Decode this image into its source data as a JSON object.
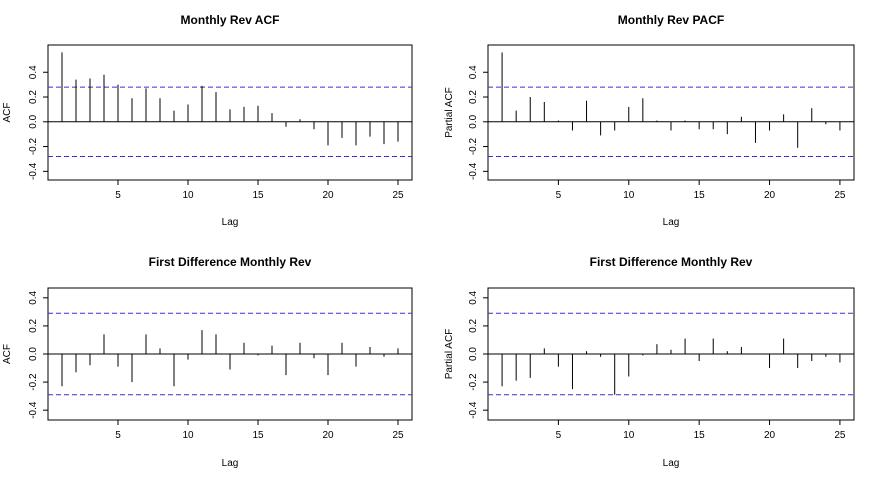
{
  "colors": {
    "bar": "#000000",
    "confidence_band": "#3333cc",
    "frame": "#000000",
    "background": "#ffffff"
  },
  "chart_data": [
    {
      "type": "bar",
      "title": "Monthly Rev ACF",
      "xlabel": "Lag",
      "ylabel": "ACF",
      "xticks": [
        5,
        10,
        15,
        20,
        25
      ],
      "yticks": [
        -0.4,
        -0.2,
        0.0,
        0.2,
        0.4
      ],
      "ytick_labels": [
        "-0.4",
        "-0.2",
        "0.0",
        "0.2",
        "0.4"
      ],
      "xlim": [
        0,
        26
      ],
      "ylim": [
        -0.47,
        0.62
      ],
      "conf_band": 0.28,
      "x": [
        1,
        2,
        3,
        4,
        5,
        6,
        7,
        8,
        9,
        10,
        11,
        12,
        13,
        14,
        15,
        16,
        17,
        18,
        19,
        20,
        21,
        22,
        23,
        24,
        25
      ],
      "values": [
        0.56,
        0.34,
        0.35,
        0.38,
        0.3,
        0.19,
        0.27,
        0.19,
        0.09,
        0.14,
        0.29,
        0.24,
        0.1,
        0.12,
        0.13,
        0.07,
        -0.04,
        0.02,
        -0.06,
        -0.19,
        -0.13,
        -0.19,
        -0.12,
        -0.18,
        -0.16
      ]
    },
    {
      "type": "bar",
      "title": "Monthly Rev PACF",
      "xlabel": "Lag",
      "ylabel": "Partial ACF",
      "xticks": [
        5,
        10,
        15,
        20,
        25
      ],
      "yticks": [
        -0.4,
        -0.2,
        0.0,
        0.2,
        0.4
      ],
      "ytick_labels": [
        "-0.4",
        "-0.2",
        "0.0",
        "0.2",
        "0.4"
      ],
      "xlim": [
        0,
        26
      ],
      "ylim": [
        -0.47,
        0.62
      ],
      "conf_band": 0.28,
      "x": [
        1,
        2,
        3,
        4,
        5,
        6,
        7,
        8,
        9,
        10,
        11,
        12,
        13,
        14,
        15,
        16,
        17,
        18,
        19,
        20,
        21,
        22,
        23,
        24,
        25
      ],
      "values": [
        0.56,
        0.09,
        0.2,
        0.16,
        0.01,
        -0.07,
        0.17,
        -0.11,
        -0.07,
        0.12,
        0.19,
        0.01,
        -0.07,
        0.01,
        -0.06,
        -0.06,
        -0.1,
        0.04,
        -0.17,
        -0.07,
        0.06,
        -0.21,
        0.11,
        -0.02,
        -0.07
      ]
    },
    {
      "type": "bar",
      "title": "First Difference Monthly Rev",
      "xlabel": "Lag",
      "ylabel": "ACF",
      "xticks": [
        5,
        10,
        15,
        20,
        25
      ],
      "yticks": [
        -0.4,
        -0.2,
        0.0,
        0.2,
        0.4
      ],
      "ytick_labels": [
        "-0.4",
        "-0.2",
        "0.0",
        "0.2",
        "0.4"
      ],
      "xlim": [
        0,
        26
      ],
      "ylim": [
        -0.47,
        0.47
      ],
      "conf_band": 0.29,
      "x": [
        1,
        2,
        3,
        4,
        5,
        6,
        7,
        8,
        9,
        10,
        11,
        12,
        13,
        14,
        15,
        16,
        17,
        18,
        19,
        20,
        21,
        22,
        23,
        24,
        25
      ],
      "values": [
        -0.23,
        -0.13,
        -0.08,
        0.14,
        -0.09,
        -0.2,
        0.14,
        0.04,
        -0.23,
        -0.04,
        0.17,
        0.14,
        -0.11,
        0.08,
        -0.01,
        0.06,
        -0.15,
        0.08,
        -0.03,
        -0.15,
        0.08,
        -0.09,
        0.05,
        -0.02,
        0.04
      ]
    },
    {
      "type": "bar",
      "title": "First Difference Monthly Rev",
      "xlabel": "Lag",
      "ylabel": "Partial ACF",
      "xticks": [
        5,
        10,
        15,
        20,
        25
      ],
      "yticks": [
        -0.4,
        -0.2,
        0.0,
        0.2,
        0.4
      ],
      "ytick_labels": [
        "-0.4",
        "-0.2",
        "0.0",
        "0.2",
        "0.4"
      ],
      "xlim": [
        0,
        26
      ],
      "ylim": [
        -0.47,
        0.47
      ],
      "conf_band": 0.29,
      "x": [
        1,
        2,
        3,
        4,
        5,
        6,
        7,
        8,
        9,
        10,
        11,
        12,
        13,
        14,
        15,
        16,
        17,
        18,
        19,
        20,
        21,
        22,
        23,
        24,
        25
      ],
      "values": [
        -0.23,
        -0.19,
        -0.17,
        0.04,
        -0.09,
        -0.25,
        0.02,
        -0.02,
        -0.29,
        -0.16,
        -0.01,
        0.07,
        0.03,
        0.11,
        -0.05,
        0.11,
        0.02,
        0.05,
        0.0,
        -0.1,
        0.11,
        -0.1,
        -0.05,
        -0.02,
        -0.06
      ]
    }
  ]
}
